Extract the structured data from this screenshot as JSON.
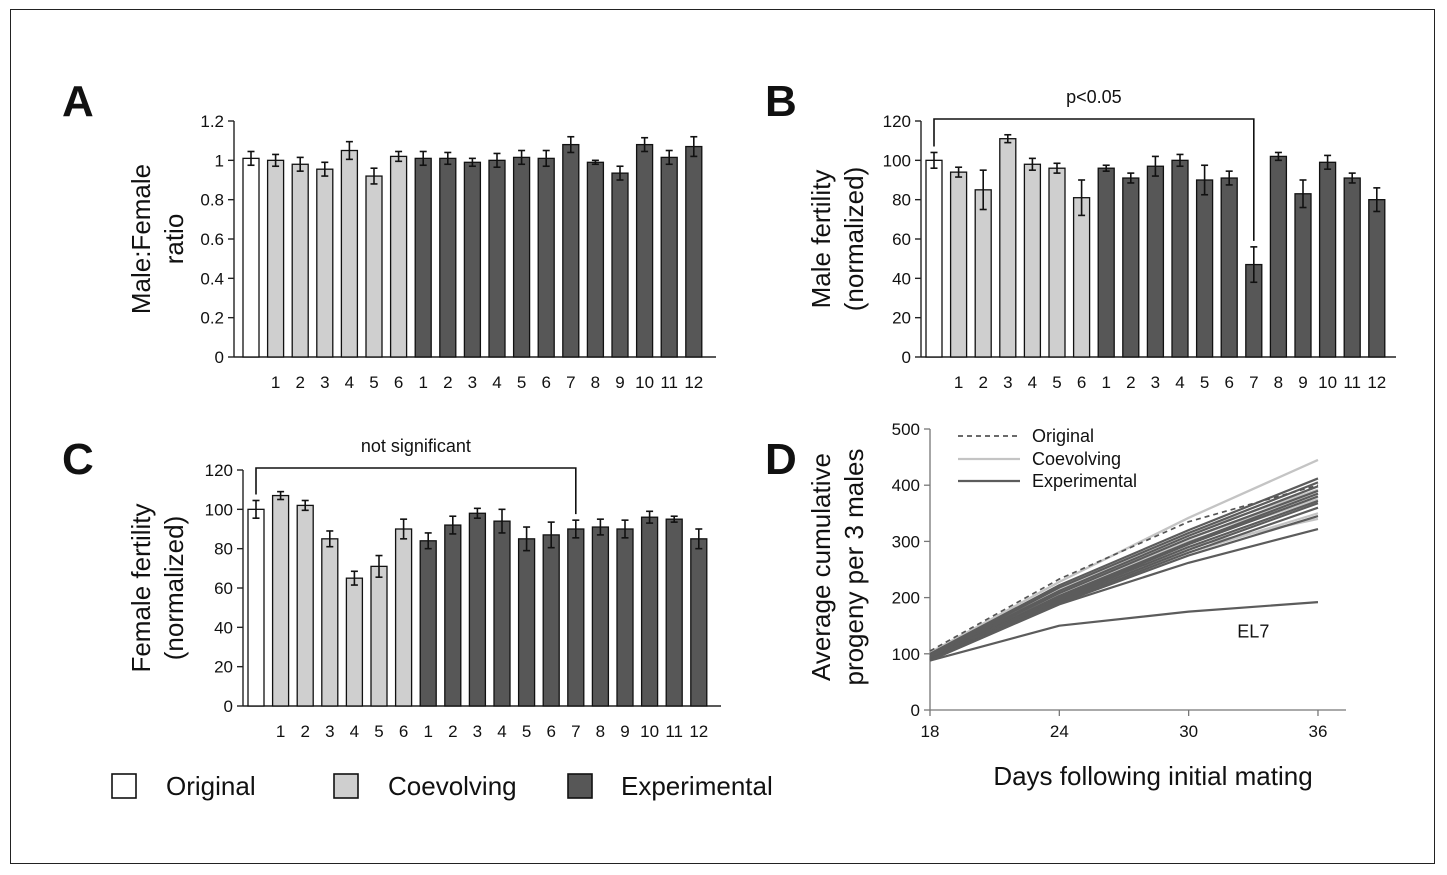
{
  "panel_letters": [
    "A",
    "B",
    "C",
    "D"
  ],
  "legend": {
    "original": "Original",
    "coevolving": "Coevolving",
    "experimental": "Experimental"
  },
  "colors": {
    "original": "#ffffff",
    "coevolving": "#cfcfcf",
    "experimental": "#575757",
    "axis": "#222222"
  },
  "chart_data": [
    {
      "panel": "A",
      "type": "bar",
      "ylabel": [
        "Male:Female",
        "ratio"
      ],
      "ylim": [
        0,
        1.2
      ],
      "yticks": [
        0,
        0.2,
        0.4,
        0.6,
        0.8,
        1,
        1.2
      ],
      "ytick_labels": [
        "0",
        "0.2",
        "0.4",
        "0.6",
        "0.8",
        "1",
        "1.2"
      ],
      "categories": [
        "",
        "1",
        "2",
        "3",
        "4",
        "5",
        "6",
        "1",
        "2",
        "3",
        "4",
        "5",
        "6",
        "7",
        "8",
        "9",
        "10",
        "11",
        "12"
      ],
      "groups": [
        "original",
        "coevolving",
        "coevolving",
        "coevolving",
        "coevolving",
        "coevolving",
        "coevolving",
        "experimental",
        "experimental",
        "experimental",
        "experimental",
        "experimental",
        "experimental",
        "experimental",
        "experimental",
        "experimental",
        "experimental",
        "experimental",
        "experimental"
      ],
      "values": [
        1.01,
        1.0,
        0.98,
        0.955,
        1.05,
        0.92,
        1.02,
        1.01,
        1.01,
        0.99,
        1.0,
        1.015,
        1.01,
        1.08,
        0.99,
        0.935,
        1.08,
        1.015,
        1.07
      ],
      "errors": [
        0.035,
        0.03,
        0.035,
        0.035,
        0.045,
        0.04,
        0.025,
        0.035,
        0.03,
        0.02,
        0.035,
        0.035,
        0.04,
        0.04,
        0.01,
        0.035,
        0.035,
        0.035,
        0.05
      ]
    },
    {
      "panel": "B",
      "type": "bar",
      "ylabel": [
        "Male fertility",
        "(normalized)"
      ],
      "ylim": [
        0,
        120
      ],
      "yticks": [
        0,
        20,
        40,
        60,
        80,
        100,
        120
      ],
      "ytick_labels": [
        "0",
        "20",
        "40",
        "60",
        "80",
        "100",
        "120"
      ],
      "categories": [
        "",
        "1",
        "2",
        "3",
        "4",
        "5",
        "6",
        "1",
        "2",
        "3",
        "4",
        "5",
        "6",
        "7",
        "8",
        "9",
        "10",
        "11",
        "12"
      ],
      "groups": [
        "original",
        "coevolving",
        "coevolving",
        "coevolving",
        "coevolving",
        "coevolving",
        "coevolving",
        "experimental",
        "experimental",
        "experimental",
        "experimental",
        "experimental",
        "experimental",
        "experimental",
        "experimental",
        "experimental",
        "experimental",
        "experimental",
        "experimental"
      ],
      "values": [
        100,
        94,
        85,
        111,
        98,
        96,
        81,
        96,
        91,
        97,
        100,
        90,
        91,
        47,
        102,
        83,
        99,
        91,
        80
      ],
      "errors": [
        4,
        2.5,
        10,
        2,
        3,
        2.5,
        9,
        1.5,
        2.5,
        5,
        3,
        7.5,
        3.5,
        9,
        2,
        7,
        3.5,
        2.5,
        6
      ],
      "annotation": {
        "text": "p<0.05",
        "from_index": 0,
        "to_index": 13
      }
    },
    {
      "panel": "C",
      "type": "bar",
      "ylabel": [
        "Female fertility",
        "(normalized)"
      ],
      "ylim": [
        0,
        120
      ],
      "yticks": [
        0,
        20,
        40,
        60,
        80,
        100,
        120
      ],
      "ytick_labels": [
        "0",
        "20",
        "40",
        "60",
        "80",
        "100",
        "120"
      ],
      "categories": [
        "",
        "1",
        "2",
        "3",
        "4",
        "5",
        "6",
        "1",
        "2",
        "3",
        "4",
        "5",
        "6",
        "7",
        "8",
        "9",
        "10",
        "11",
        "12"
      ],
      "groups": [
        "original",
        "coevolving",
        "coevolving",
        "coevolving",
        "coevolving",
        "coevolving",
        "coevolving",
        "experimental",
        "experimental",
        "experimental",
        "experimental",
        "experimental",
        "experimental",
        "experimental",
        "experimental",
        "experimental",
        "experimental",
        "experimental",
        "experimental"
      ],
      "values": [
        100,
        107,
        102,
        85,
        65,
        71,
        90,
        84,
        92,
        98,
        94,
        85,
        87,
        90,
        91,
        90,
        96,
        95,
        85
      ],
      "errors": [
        4.5,
        2,
        2.5,
        4,
        3.5,
        5.5,
        5,
        4,
        4.5,
        2.5,
        6,
        6,
        6.5,
        4.5,
        4,
        4.5,
        3,
        1.5,
        5
      ],
      "annotation": {
        "text": "not significant",
        "from_index": 0,
        "to_index": 13
      }
    },
    {
      "panel": "D",
      "type": "line",
      "xlabel": "Days following initial mating",
      "ylabel": [
        "Average cumulative",
        "progeny per 3 males"
      ],
      "x": [
        18,
        24,
        30,
        36
      ],
      "xlim": [
        18,
        37.3
      ],
      "xticks": [
        18,
        24,
        30,
        36
      ],
      "ylim": [
        0,
        500
      ],
      "yticks": [
        0,
        100,
        200,
        300,
        400,
        500
      ],
      "legend_position": "top-left",
      "legend_entries": [
        "Original",
        "Coevolving",
        "Experimental"
      ],
      "series": [
        {
          "name": "Original",
          "group": "original",
          "values": [
            105,
            233,
            335,
            400
          ]
        },
        {
          "group": "coevolving",
          "values": [
            102,
            228,
            342,
            445
          ]
        },
        {
          "group": "coevolving",
          "values": [
            99,
            215,
            315,
            392
          ]
        },
        {
          "group": "coevolving",
          "values": [
            96,
            205,
            300,
            375
          ]
        },
        {
          "group": "coevolving",
          "values": [
            94,
            195,
            290,
            340
          ]
        },
        {
          "group": "coevolving",
          "values": [
            100,
            210,
            305,
            385
          ]
        },
        {
          "group": "coevolving",
          "values": [
            97,
            200,
            280,
            350
          ]
        },
        {
          "group": "experimental",
          "values": [
            100,
            222,
            320,
            412
          ]
        },
        {
          "group": "experimental",
          "values": [
            98,
            218,
            315,
            405
          ]
        },
        {
          "group": "experimental",
          "values": [
            97,
            212,
            310,
            398
          ]
        },
        {
          "group": "experimental",
          "values": [
            95,
            208,
            305,
            390
          ]
        },
        {
          "group": "experimental",
          "values": [
            93,
            203,
            298,
            385
          ]
        },
        {
          "group": "experimental",
          "values": [
            92,
            200,
            295,
            380
          ]
        },
        {
          "group": "experimental",
          "values": [
            94,
            198,
            290,
            372
          ]
        },
        {
          "group": "experimental",
          "values": [
            91,
            195,
            285,
            368
          ]
        },
        {
          "group": "experimental",
          "values": [
            90,
            192,
            280,
            360
          ]
        },
        {
          "group": "experimental",
          "values": [
            89,
            190,
            275,
            345
          ]
        },
        {
          "group": "experimental",
          "values": [
            88,
            188,
            262,
            322
          ]
        },
        {
          "name": "EL7",
          "group": "experimental",
          "values": [
            88,
            150,
            175,
            192
          ]
        }
      ],
      "annotation": {
        "text": "EL7",
        "x": 33,
        "y": 140
      }
    }
  ]
}
